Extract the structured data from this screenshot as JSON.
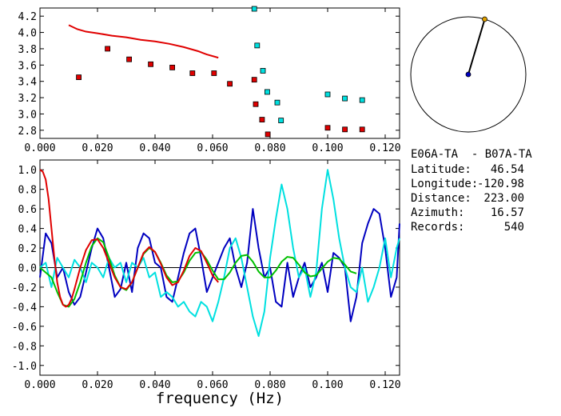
{
  "chart_data": [
    {
      "type": "scatter",
      "panel": "top",
      "xlim": [
        0.0,
        0.125
      ],
      "ylim": [
        2.7,
        4.3
      ],
      "xticks": [
        "0.000",
        "0.020",
        "0.040",
        "0.060",
        "0.080",
        "0.100",
        "0.120"
      ],
      "yticks": [
        "2.8",
        "3.0",
        "3.2",
        "3.4",
        "3.6",
        "3.8",
        "4.0",
        "4.2"
      ],
      "grid": false,
      "legend": "none",
      "curve": {
        "color": "#e00000",
        "x": [
          0.01,
          0.013,
          0.016,
          0.02,
          0.025,
          0.03,
          0.035,
          0.04,
          0.045,
          0.05,
          0.055,
          0.058,
          0.062
        ],
        "y": [
          4.09,
          4.04,
          4.01,
          3.99,
          3.96,
          3.94,
          3.91,
          3.89,
          3.86,
          3.82,
          3.77,
          3.73,
          3.69
        ]
      },
      "red_points": {
        "color": "#e00000",
        "x": [
          0.0135,
          0.0235,
          0.031,
          0.0385,
          0.046,
          0.053,
          0.0605,
          0.066,
          0.0745,
          0.075,
          0.0772,
          0.0792,
          0.1,
          0.106,
          0.112
        ],
        "y": [
          3.45,
          3.8,
          3.67,
          3.61,
          3.57,
          3.5,
          3.5,
          3.37,
          3.42,
          3.12,
          2.93,
          2.75,
          2.83,
          2.81,
          2.81
        ]
      },
      "cyan_points": {
        "color": "#00e0e0",
        "x": [
          0.0745,
          0.0755,
          0.0775,
          0.079,
          0.0825,
          0.0838,
          0.1,
          0.106,
          0.112
        ],
        "y": [
          4.29,
          3.84,
          3.53,
          3.27,
          3.14,
          2.92,
          3.24,
          3.19,
          3.17
        ]
      }
    },
    {
      "type": "line",
      "panel": "bottom",
      "xlabel": "frequency (Hz)",
      "xlim": [
        0.0,
        0.125
      ],
      "ylim": [
        -1.1,
        1.1
      ],
      "xticks": [
        "0.000",
        "0.020",
        "0.040",
        "0.060",
        "0.080",
        "0.100",
        "0.120"
      ],
      "yticks": [
        "1.0",
        "0.8",
        "0.6",
        "0.4",
        "0.2",
        "0.0",
        "-0.2",
        "-0.4",
        "-0.6",
        "-0.8",
        "-1.0"
      ],
      "zero_line": true,
      "grid": false,
      "legend": "none",
      "series": [
        {
          "color": "#0000c0",
          "x": [
            0,
            0.002,
            0.004,
            0.006,
            0.008,
            0.01,
            0.012,
            0.014,
            0.016,
            0.018,
            0.02,
            0.022,
            0.024,
            0.026,
            0.028,
            0.03,
            0.032,
            0.034,
            0.036,
            0.038,
            0.04,
            0.042,
            0.044,
            0.046,
            0.048,
            0.05,
            0.052,
            0.054,
            0.056,
            0.058,
            0.06,
            0.062,
            0.064,
            0.066,
            0.068,
            0.07,
            0.072,
            0.074,
            0.076,
            0.078,
            0.08,
            0.082,
            0.084,
            0.086,
            0.088,
            0.09,
            0.092,
            0.094,
            0.096,
            0.098,
            0.1,
            0.102,
            0.104,
            0.106,
            0.108,
            0.11,
            0.112,
            0.114,
            0.116,
            0.118,
            0.12,
            0.122,
            0.124,
            0.125
          ],
          "y": [
            -0.1,
            0.35,
            0.25,
            -0.1,
            0.0,
            -0.25,
            -0.38,
            -0.3,
            -0.05,
            0.2,
            0.4,
            0.3,
            0.0,
            -0.3,
            -0.22,
            0.05,
            -0.25,
            0.2,
            0.35,
            0.3,
            0.05,
            0.0,
            -0.3,
            -0.35,
            -0.1,
            0.15,
            0.35,
            0.4,
            0.1,
            -0.25,
            -0.1,
            0.05,
            0.2,
            0.3,
            0.0,
            -0.2,
            0.05,
            0.6,
            0.2,
            -0.1,
            0.0,
            -0.35,
            -0.4,
            0.05,
            -0.3,
            -0.1,
            0.05,
            -0.2,
            -0.1,
            0.05,
            -0.25,
            0.15,
            0.1,
            0.0,
            -0.55,
            -0.3,
            0.25,
            0.45,
            0.6,
            0.55,
            0.2,
            -0.3,
            -0.1,
            0.45
          ]
        },
        {
          "color": "#00e0e0",
          "x": [
            0,
            0.002,
            0.004,
            0.006,
            0.008,
            0.01,
            0.012,
            0.014,
            0.016,
            0.018,
            0.02,
            0.022,
            0.024,
            0.026,
            0.028,
            0.03,
            0.032,
            0.034,
            0.036,
            0.038,
            0.04,
            0.042,
            0.044,
            0.046,
            0.048,
            0.05,
            0.052,
            0.054,
            0.056,
            0.058,
            0.06,
            0.062,
            0.064,
            0.066,
            0.068,
            0.07,
            0.072,
            0.074,
            0.076,
            0.078,
            0.08,
            0.082,
            0.084,
            0.086,
            0.088,
            0.09,
            0.092,
            0.094,
            0.096,
            0.098,
            0.1,
            0.102,
            0.104,
            0.106,
            0.108,
            0.11,
            0.112,
            0.114,
            0.116,
            0.118,
            0.12,
            0.122,
            0.124,
            0.125
          ],
          "y": [
            0.0,
            0.05,
            -0.2,
            0.1,
            0.0,
            -0.1,
            0.08,
            0.0,
            -0.15,
            0.05,
            0.0,
            -0.1,
            0.1,
            0.0,
            0.05,
            -0.15,
            0.05,
            0.0,
            0.1,
            -0.1,
            -0.05,
            -0.3,
            -0.25,
            -0.3,
            -0.4,
            -0.35,
            -0.45,
            -0.5,
            -0.35,
            -0.4,
            -0.55,
            -0.35,
            -0.1,
            0.2,
            0.3,
            0.1,
            -0.2,
            -0.5,
            -0.7,
            -0.45,
            0.1,
            0.5,
            0.85,
            0.6,
            0.2,
            -0.1,
            0.0,
            -0.3,
            -0.05,
            0.6,
            1.0,
            0.7,
            0.3,
            0.0,
            -0.2,
            -0.25,
            0.0,
            -0.35,
            -0.2,
            0.0,
            0.3,
            -0.1,
            0.2,
            0.3
          ]
        },
        {
          "color": "#00c000",
          "x": [
            0,
            0.002,
            0.004,
            0.006,
            0.008,
            0.01,
            0.012,
            0.014,
            0.016,
            0.018,
            0.02,
            0.022,
            0.024,
            0.026,
            0.028,
            0.03,
            0.032,
            0.034,
            0.036,
            0.038,
            0.04,
            0.042,
            0.044,
            0.046,
            0.048,
            0.05,
            0.052,
            0.054,
            0.056,
            0.058,
            0.06,
            0.062,
            0.064,
            0.066,
            0.068,
            0.07,
            0.072,
            0.074,
            0.076,
            0.078,
            0.08,
            0.082,
            0.084,
            0.086,
            0.088,
            0.09,
            0.092,
            0.094,
            0.096,
            0.098,
            0.1,
            0.102,
            0.104,
            0.106,
            0.108,
            0.11
          ],
          "y": [
            0.0,
            -0.05,
            -0.1,
            -0.25,
            -0.38,
            -0.4,
            -0.32,
            -0.15,
            0.05,
            0.22,
            0.3,
            0.26,
            0.1,
            -0.08,
            -0.2,
            -0.23,
            -0.15,
            0.0,
            0.14,
            0.2,
            0.16,
            0.05,
            -0.08,
            -0.15,
            -0.14,
            -0.05,
            0.07,
            0.15,
            0.16,
            0.08,
            -0.03,
            -0.12,
            -0.12,
            -0.05,
            0.05,
            0.12,
            0.13,
            0.06,
            -0.04,
            -0.1,
            -0.1,
            -0.03,
            0.06,
            0.11,
            0.1,
            0.03,
            -0.05,
            -0.09,
            -0.08,
            -0.01,
            0.06,
            0.1,
            0.09,
            0.03,
            -0.04,
            -0.06
          ]
        },
        {
          "color": "#e00000",
          "x": [
            0,
            0.001,
            0.002,
            0.003,
            0.004,
            0.005,
            0.006,
            0.007,
            0.008,
            0.009,
            0.01,
            0.011,
            0.012,
            0.014,
            0.016,
            0.018,
            0.02,
            0.022,
            0.024,
            0.026,
            0.028,
            0.03,
            0.032,
            0.034,
            0.036,
            0.038,
            0.04,
            0.042,
            0.044,
            0.046,
            0.048,
            0.05,
            0.052,
            0.054,
            0.056,
            0.058,
            0.06,
            0.062
          ],
          "y": [
            1.0,
            0.98,
            0.9,
            0.7,
            0.4,
            0.1,
            -0.15,
            -0.3,
            -0.38,
            -0.4,
            -0.38,
            -0.32,
            -0.22,
            0.0,
            0.18,
            0.28,
            0.29,
            0.2,
            0.05,
            -0.1,
            -0.2,
            -0.22,
            -0.15,
            0.0,
            0.15,
            0.21,
            0.16,
            0.04,
            -0.1,
            -0.18,
            -0.15,
            -0.03,
            0.12,
            0.2,
            0.17,
            0.05,
            -0.08,
            -0.15
          ]
        }
      ]
    }
  ],
  "polar": {
    "azimuth_deg": 16.57,
    "circle_color": "#000000",
    "line_color": "#000000",
    "end_dot_color": "#e0a000",
    "center_dot_color": "#0000c0"
  },
  "info": {
    "title": "E06A-TA  - B07A-TA",
    "rows": [
      {
        "label": "Latitude:",
        "value": "46.54"
      },
      {
        "label": "Longitude:",
        "value": "-120.98"
      },
      {
        "label": "Distance:",
        "value": "223.00"
      },
      {
        "label": "Azimuth:",
        "value": "16.57"
      },
      {
        "label": "Records:",
        "value": "540"
      }
    ]
  }
}
